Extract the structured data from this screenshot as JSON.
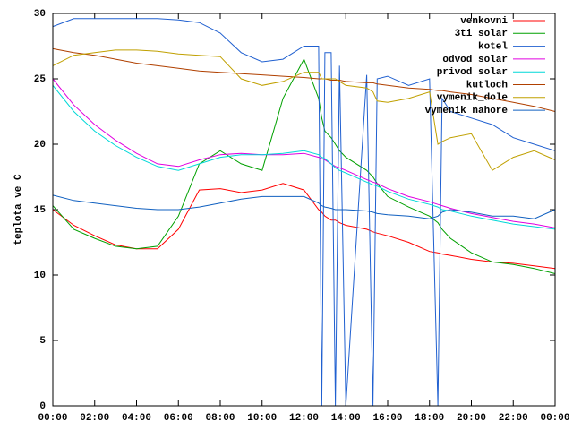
{
  "chart_data": {
    "type": "line",
    "y_label": "teplota ve C",
    "x": [
      0,
      1,
      2,
      3,
      4,
      5,
      6,
      7,
      8,
      9,
      10,
      11,
      12,
      12.7,
      12.85,
      13,
      13.3,
      13.5,
      13.7,
      14,
      15,
      15.3,
      15.5,
      16,
      17,
      18,
      18.4,
      18.6,
      19,
      20,
      21,
      22,
      23,
      24
    ],
    "xlim": [
      0,
      24
    ],
    "xticks": [
      {
        "value": 0,
        "label": "00:00"
      },
      {
        "value": 2,
        "label": "02:00"
      },
      {
        "value": 4,
        "label": "04:00"
      },
      {
        "value": 6,
        "label": "06:00"
      },
      {
        "value": 8,
        "label": "08:00"
      },
      {
        "value": 10,
        "label": "10:00"
      },
      {
        "value": 12,
        "label": "12:00"
      },
      {
        "value": 14,
        "label": "14:00"
      },
      {
        "value": 16,
        "label": "16:00"
      },
      {
        "value": 18,
        "label": "18:00"
      },
      {
        "value": 20,
        "label": "20:00"
      },
      {
        "value": 22,
        "label": "22:00"
      },
      {
        "value": 24,
        "label": "00:00"
      }
    ],
    "ylim": [
      0,
      30
    ],
    "yticks": [
      0,
      5,
      10,
      15,
      20,
      25,
      30
    ],
    "legend": "top-right",
    "series": [
      {
        "name": "venkovni",
        "color": "#ff0000",
        "values": [
          15.0,
          13.8,
          13,
          12.3,
          12,
          12,
          13.5,
          16.5,
          16.6,
          16.3,
          16.5,
          17,
          16.5,
          15,
          14.8,
          14.5,
          14.2,
          14.2,
          14,
          13.8,
          13.5,
          13.3,
          13.2,
          13,
          12.5,
          11.8,
          11.7,
          11.6,
          11.5,
          11.2,
          11,
          10.9,
          10.7,
          10.5
        ]
      },
      {
        "name": "3ti solar",
        "color": "#00a000",
        "values": [
          15.3,
          13.5,
          12.8,
          12.2,
          12,
          12.2,
          14.5,
          18.5,
          19.5,
          18.5,
          18,
          23.5,
          26.5,
          23.5,
          22,
          21,
          20.5,
          20,
          19.5,
          19,
          18,
          17.5,
          17,
          16,
          15.2,
          14.5,
          14,
          13.5,
          12.8,
          11.7,
          11,
          10.8,
          10.5,
          10.1
        ]
      },
      {
        "name": "kotel",
        "color": "#2060d0",
        "values": [
          29,
          29.6,
          29.6,
          29.6,
          29.6,
          29.6,
          29.5,
          29.3,
          28.5,
          27,
          26.3,
          26.5,
          27.5,
          27.5,
          0,
          27,
          27,
          0,
          26,
          0,
          25.3,
          0,
          25,
          25.2,
          24.5,
          25,
          0,
          23.5,
          22.5,
          22,
          21.5,
          20.5,
          20,
          19.5
        ]
      },
      {
        "name": "odvod solar",
        "color": "#e000e0",
        "values": [
          25,
          23,
          21.5,
          20.3,
          19.3,
          18.5,
          18.3,
          18.8,
          19.2,
          19.3,
          19.2,
          19.2,
          19.3,
          19,
          18.9,
          18.8,
          18.5,
          18.3,
          18.2,
          18,
          17.3,
          17.1,
          17,
          16.6,
          16,
          15.6,
          15.4,
          15.3,
          15.1,
          14.7,
          14.4,
          14.1,
          13.9,
          13.6
        ]
      },
      {
        "name": "privod solar",
        "color": "#00d8d8",
        "values": [
          24.5,
          22.5,
          21,
          19.9,
          19,
          18.3,
          18,
          18.5,
          19,
          19.2,
          19.2,
          19.3,
          19.5,
          19.2,
          19,
          18.9,
          18.5,
          18.2,
          18,
          17.8,
          17.1,
          16.9,
          16.8,
          16.4,
          15.8,
          15.4,
          15.2,
          15,
          14.9,
          14.5,
          14.2,
          13.9,
          13.7,
          13.5
        ]
      },
      {
        "name": "kutloch",
        "color": "#b04000",
        "values": [
          27.3,
          27,
          26.8,
          26.5,
          26.2,
          26,
          25.8,
          25.6,
          25.5,
          25.4,
          25.3,
          25.2,
          25.1,
          25,
          25,
          25,
          24.9,
          24.9,
          24.9,
          24.8,
          24.7,
          24.7,
          24.6,
          24.5,
          24.3,
          24.2,
          24.1,
          24.1,
          24,
          23.8,
          23.5,
          23.2,
          22.9,
          22.5
        ]
      },
      {
        "name": "vymenik_dole",
        "color": "#c0a000",
        "values": [
          26,
          26.8,
          27,
          27.2,
          27.2,
          27.1,
          26.9,
          26.8,
          26.7,
          25,
          24.5,
          24.8,
          25.5,
          25.5,
          25,
          25,
          25,
          25,
          24.8,
          24.5,
          24.3,
          24,
          23.3,
          23.2,
          23.5,
          24,
          20,
          20.2,
          20.5,
          20.8,
          18,
          19,
          19.5,
          18.8
        ]
      },
      {
        "name": "vymenik nahore",
        "color": "#1060c0",
        "values": [
          16.1,
          15.7,
          15.5,
          15.3,
          15.1,
          15,
          15,
          15.2,
          15.5,
          15.8,
          16,
          16,
          16,
          15.5,
          15.3,
          15.2,
          15.1,
          15,
          15,
          15,
          14.9,
          14.8,
          14.7,
          14.6,
          14.5,
          14.3,
          14.5,
          14.8,
          15,
          14.8,
          14.5,
          14.5,
          14.3,
          15
        ]
      }
    ]
  }
}
